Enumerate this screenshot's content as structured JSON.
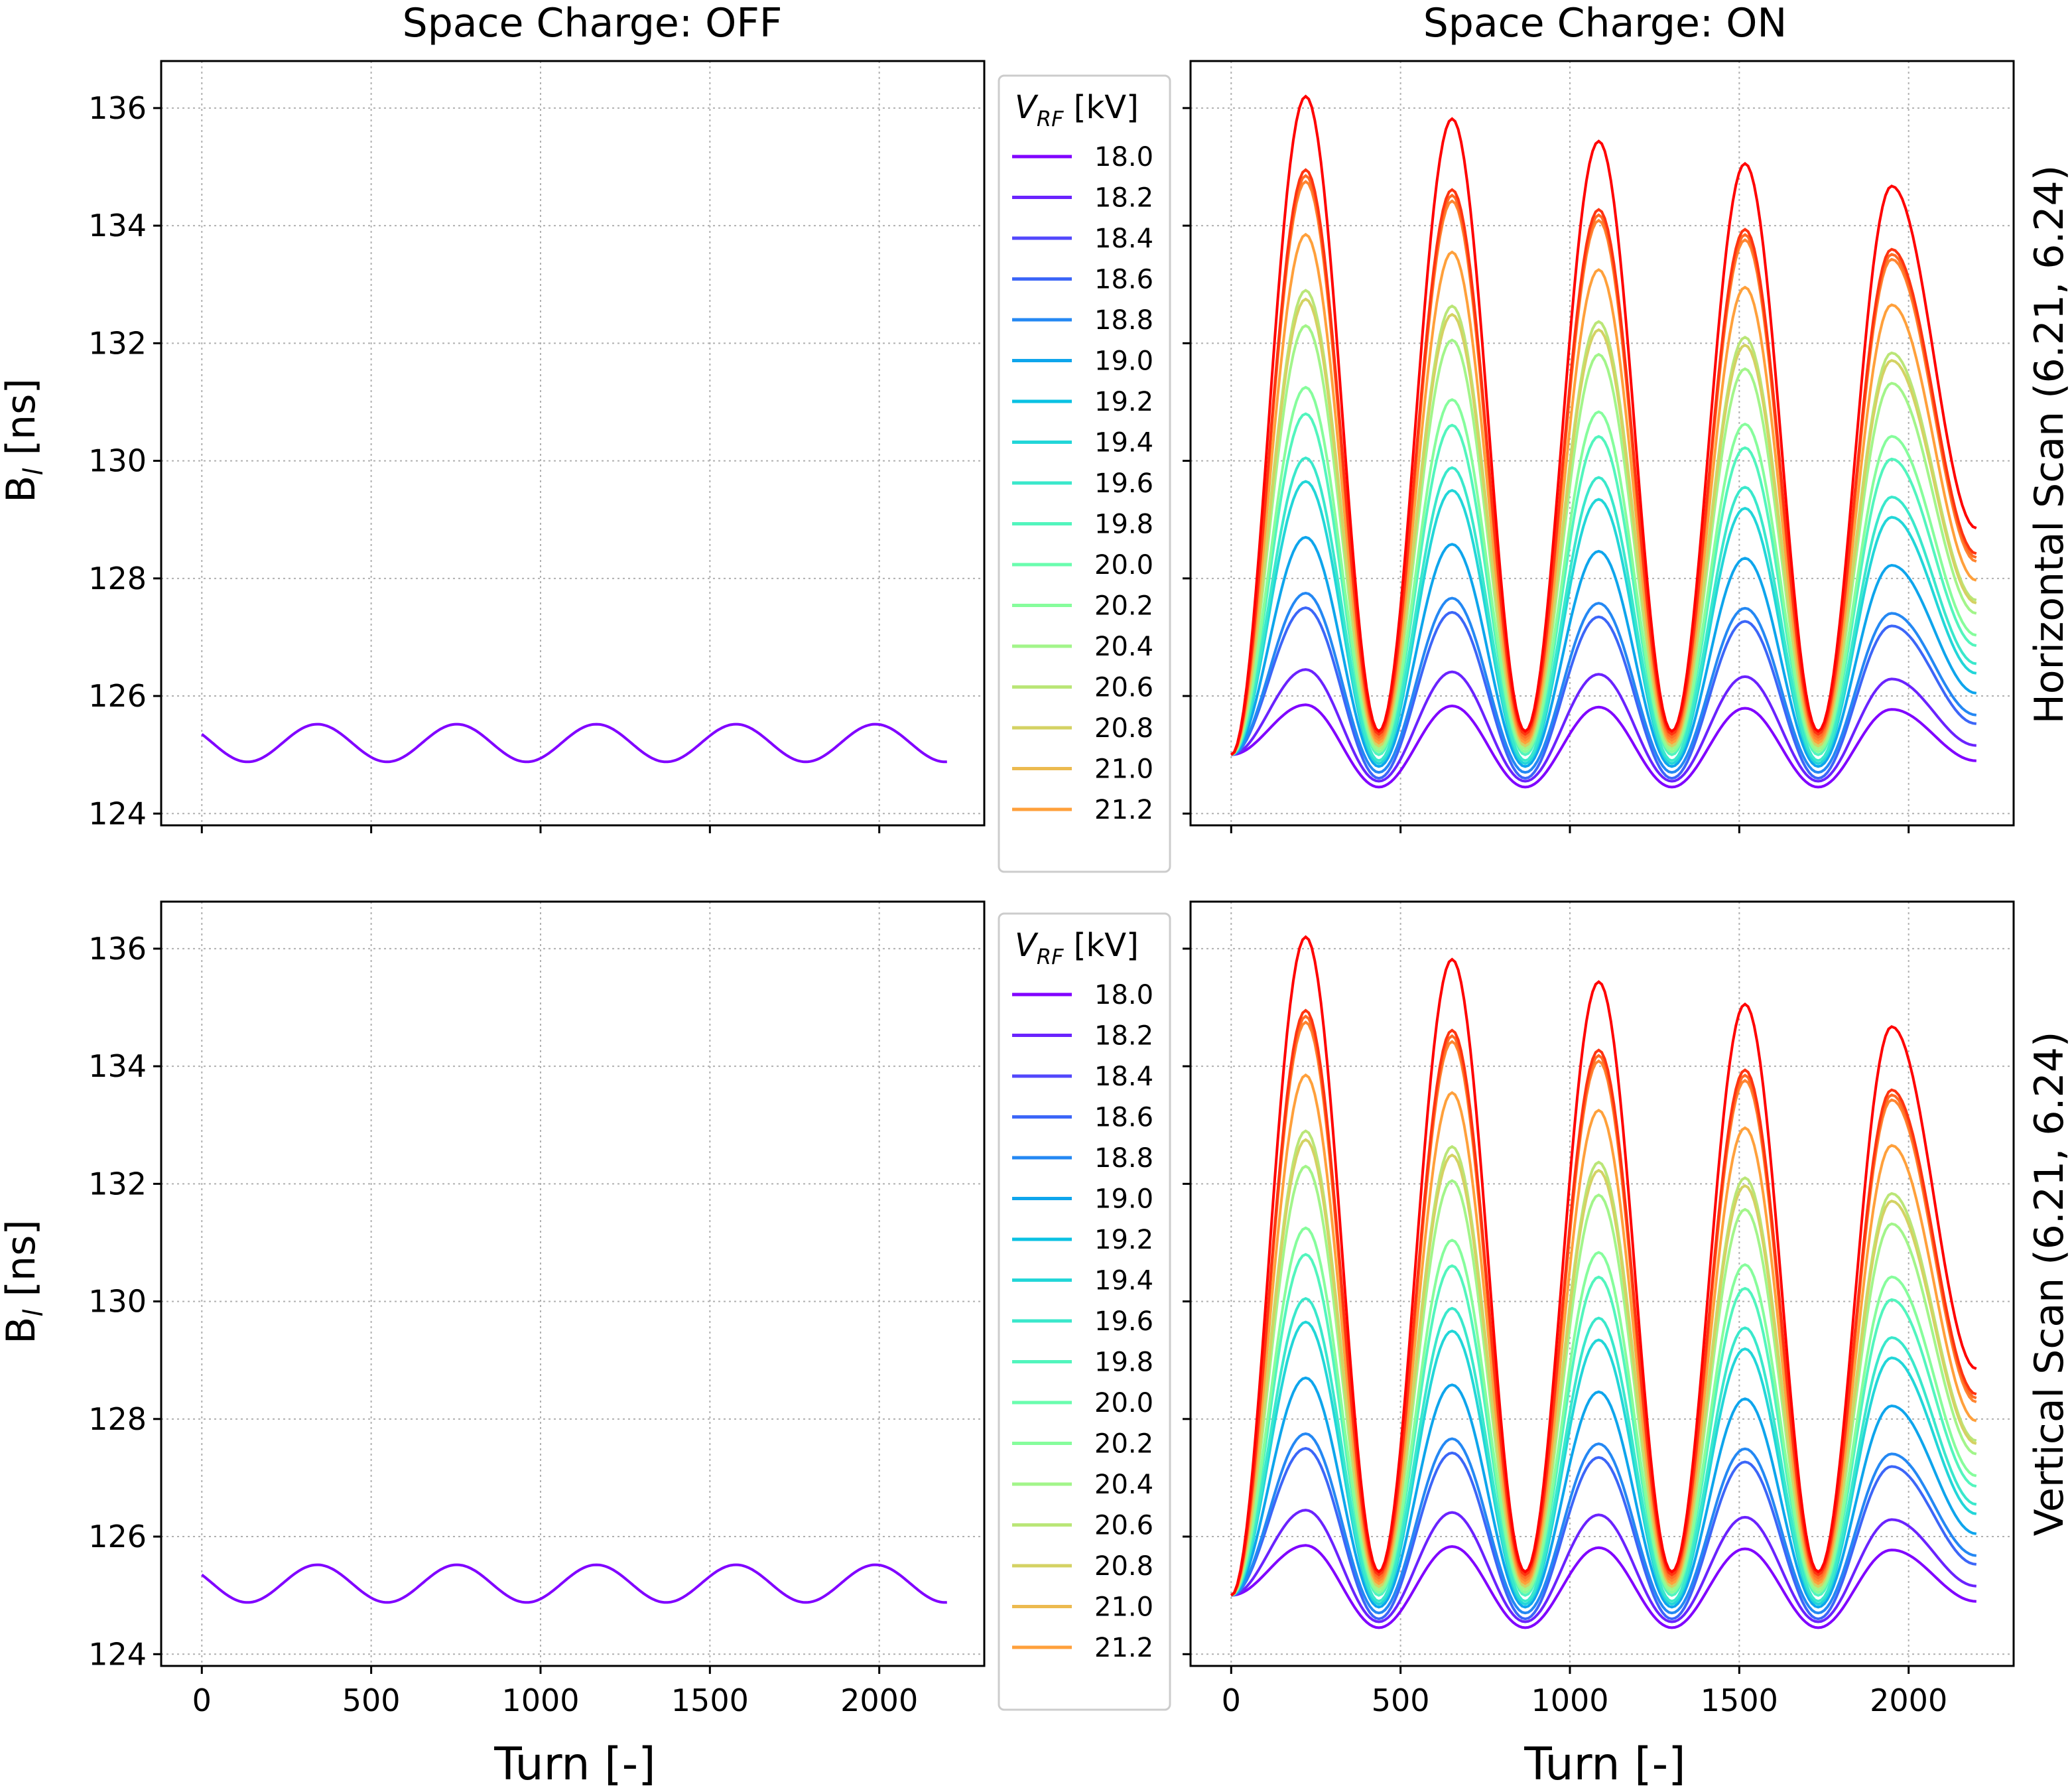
{
  "figure": {
    "columns": [
      "Space Charge: OFF",
      "Space Charge: ON"
    ],
    "rows": [
      "Horizontal Scan (6.21, 6.24)",
      "Vertical Scan (6.21, 6.24)"
    ],
    "ylabel_main": "B",
    "ylabel_sub": "l",
    "ylabel_rest": " [ns]",
    "xlabel": "Turn [-]"
  },
  "legend": {
    "title_var": "V",
    "title_sub": "RF",
    "title_unit": " [kV]",
    "entries": [
      "18.0",
      "18.2",
      "18.4",
      "18.6",
      "18.8",
      "19.0",
      "19.2",
      "19.4",
      "19.6",
      "19.8",
      "20.0",
      "20.2",
      "20.4",
      "20.6",
      "20.8",
      "21.0",
      "21.2"
    ],
    "colors": [
      "#8000ff",
      "#6a23fe",
      "#5247fc",
      "#3c66f8",
      "#2488f3",
      "#0ea5ec",
      "#0ac2e3",
      "#22d6d8",
      "#3ae8cb",
      "#52f5bd",
      "#6afdae",
      "#86fd9c",
      "#a2f58a",
      "#bae677",
      "#d4d263",
      "#ecba4f",
      "#ffa03b"
    ],
    "rank_colors": [
      "#8000ff",
      "#6a23fe",
      "#5247fc",
      "#3c66f8",
      "#2488f3",
      "#0ea5ec",
      "#0ac2e3",
      "#22d6d8",
      "#3ae8cb",
      "#52f5bd",
      "#6afdae",
      "#86fd9c",
      "#a2f58a",
      "#bae677",
      "#d4d263",
      "#ecba4f",
      "#ffa03b",
      "#ff8530",
      "#ff6a25",
      "#ff4f1a",
      "#ff3410",
      "#ff0000"
    ]
  },
  "chart_data": [
    {
      "type": "line",
      "panel": "Horizontal Scan (6.21, 6.24) — Space Charge: OFF",
      "xlabel": "",
      "ylabel": "B_l [ns]",
      "xlim": [
        -120,
        2310
      ],
      "ylim": [
        123.8,
        136.8
      ],
      "xticks": [
        0,
        500,
        1000,
        1500,
        2000
      ],
      "yticks": [
        124,
        126,
        128,
        130,
        132,
        134,
        136
      ],
      "grid": true,
      "series": [
        {
          "name": "18.0",
          "mean": 125.2,
          "amplitude": 0.32,
          "period": 412,
          "x_start": 0,
          "x_end": 2200,
          "y_start": 125.05
        }
      ]
    },
    {
      "type": "line",
      "panel": "Horizontal Scan (6.21, 6.24) — Space Charge: ON",
      "title": "Space Charge: ON",
      "ylabel_right": "Horizontal Scan (6.21, 6.24)",
      "xlim": [
        -120,
        2310
      ],
      "ylim": [
        123.8,
        136.8
      ],
      "xticks": [
        0,
        500,
        1000,
        1500,
        2000
      ],
      "yticks": [
        124,
        126,
        128,
        130,
        132,
        134,
        136
      ],
      "grid": true,
      "peak_turns": [
        220,
        652,
        1085,
        1517,
        1950
      ],
      "valley_turns": [
        436,
        868,
        1301,
        1733
      ],
      "series_peaks": [
        125.85,
        126.45,
        127.5,
        127.75,
        128.7,
        129.65,
        130.05,
        130.8,
        131.25,
        132.3,
        132.9,
        132.75,
        133.85,
        134.75,
        134.85,
        134.95,
        136.2
      ],
      "series_valleys": [
        124.45,
        124.55,
        124.6,
        124.7,
        124.8,
        124.85,
        124.9,
        125.0,
        125.05,
        125.1,
        125.15,
        125.15,
        125.2,
        125.25,
        125.3,
        125.35,
        125.4
      ]
    },
    {
      "type": "line",
      "panel": "Vertical Scan (6.21, 6.24) — Space Charge: OFF",
      "xlabel": "Turn [-]",
      "ylabel": "B_l [ns]",
      "xlim": [
        -120,
        2310
      ],
      "ylim": [
        123.8,
        136.8
      ],
      "xticks": [
        0,
        500,
        1000,
        1500,
        2000
      ],
      "yticks": [
        124,
        126,
        128,
        130,
        132,
        134,
        136
      ],
      "grid": true,
      "series": [
        {
          "name": "18.0",
          "mean": 125.2,
          "amplitude": 0.32,
          "period": 412,
          "x_start": 0,
          "x_end": 2200,
          "y_start": 125.05
        }
      ]
    },
    {
      "type": "line",
      "panel": "Vertical Scan (6.21, 6.24) — Space Charge: ON",
      "xlabel": "Turn [-]",
      "ylabel_right": "Vertical Scan (6.21, 6.24)",
      "xlim": [
        -120,
        2310
      ],
      "ylim": [
        123.8,
        136.8
      ],
      "xticks": [
        0,
        500,
        1000,
        1500,
        2000
      ],
      "yticks": [
        124,
        126,
        128,
        130,
        132,
        134,
        136
      ],
      "grid": true,
      "peak_turns": [
        220,
        652,
        1085,
        1517,
        1950
      ],
      "valley_turns": [
        436,
        868,
        1301,
        1733
      ],
      "series_peaks": [
        125.85,
        126.45,
        127.5,
        127.75,
        128.7,
        129.65,
        130.05,
        130.8,
        131.25,
        132.3,
        132.9,
        132.75,
        133.85,
        134.75,
        134.85,
        134.95,
        136.2
      ],
      "series_valleys": [
        124.45,
        124.55,
        124.6,
        124.7,
        124.8,
        124.85,
        124.9,
        125.0,
        125.05,
        125.1,
        125.15,
        125.15,
        125.2,
        125.25,
        125.3,
        125.35,
        125.4
      ]
    }
  ]
}
